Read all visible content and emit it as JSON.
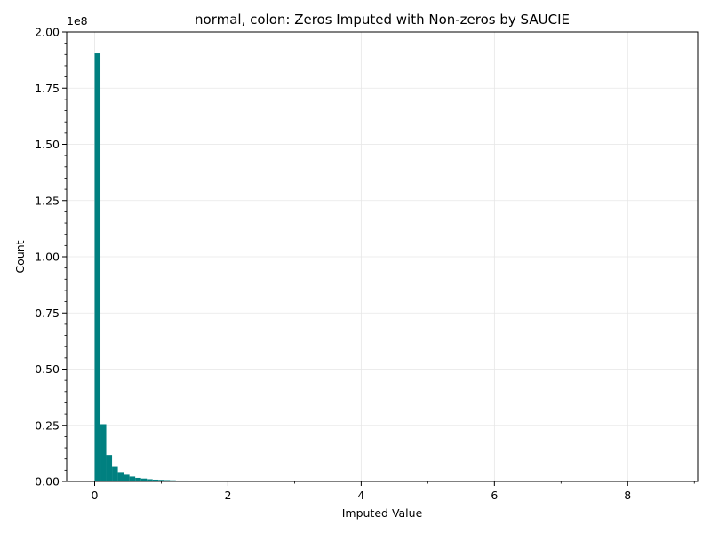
{
  "chart_data": {
    "type": "bar",
    "title": "normal, colon: Zeros Imputed with Non-zeros by SAUCIE",
    "xlabel": "Imputed Value",
    "ylabel": "Count",
    "y_offset_label": "1e8",
    "xlim": [
      -0.42,
      9.05
    ],
    "ylim": [
      0,
      2.0
    ],
    "x_ticks": [
      0,
      2,
      4,
      6,
      8
    ],
    "x_tick_labels": [
      "0",
      "2",
      "4",
      "6",
      "8"
    ],
    "y_ticks": [
      0,
      0.25,
      0.5,
      0.75,
      1.0,
      1.25,
      1.5,
      1.75,
      2.0
    ],
    "y_tick_labels": [
      "0.00",
      "0.25",
      "0.50",
      "0.75",
      "1.00",
      "1.25",
      "1.50",
      "1.75",
      "2.00"
    ],
    "grid": true,
    "bar_color": "#008080",
    "bin_width": 0.087,
    "bin_starts": [
      0,
      0.087,
      0.174,
      0.261,
      0.348,
      0.435,
      0.522,
      0.609,
      0.696,
      0.783,
      0.87,
      0.957,
      1.044,
      1.131,
      1.218,
      1.305,
      1.392,
      1.479,
      1.566,
      1.653,
      1.74,
      1.827,
      1.914,
      2.001,
      2.088,
      2.175,
      2.262,
      2.349,
      2.436,
      2.523
    ],
    "counts_1e8": [
      1.905,
      0.255,
      0.118,
      0.065,
      0.042,
      0.03,
      0.022,
      0.016,
      0.013,
      0.01,
      0.008,
      0.007,
      0.006,
      0.005,
      0.004,
      0.004,
      0.0035,
      0.003,
      0.0025,
      0.002,
      0.002,
      0.0015,
      0.0015,
      0.001,
      0.001,
      0.001,
      0.0008,
      0.0006,
      0.0005,
      0.0004
    ]
  }
}
